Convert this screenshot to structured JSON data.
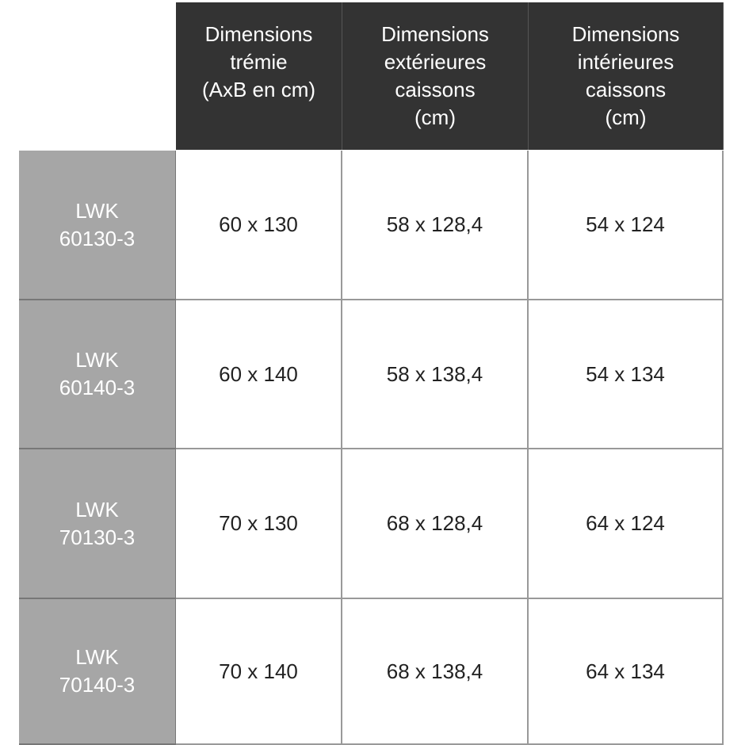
{
  "table": {
    "header": [
      [
        "Dimensions",
        "trémie",
        "(AxB en cm)"
      ],
      [
        "Dimensions",
        "extérieures",
        "caissons",
        "(cm)"
      ],
      [
        "Dimensions",
        "intérieures",
        "caissons",
        "(cm)"
      ]
    ],
    "rows": [
      {
        "label": [
          "LWK",
          "60130-3"
        ],
        "cells": [
          "60 x 130",
          "58 x 128,4",
          "54 x 124"
        ]
      },
      {
        "label": [
          "LWK",
          "60140-3"
        ],
        "cells": [
          "60 x 140",
          "58 x 138,4",
          "54 x 134"
        ]
      },
      {
        "label": [
          "LWK",
          "70130-3"
        ],
        "cells": [
          "70 x 130",
          "68 x 128,4",
          "64 x 124"
        ]
      },
      {
        "label": [
          "LWK",
          "70140-3"
        ],
        "cells": [
          "70 x 140",
          "68 x 138,4",
          "64 x 134"
        ]
      }
    ]
  }
}
